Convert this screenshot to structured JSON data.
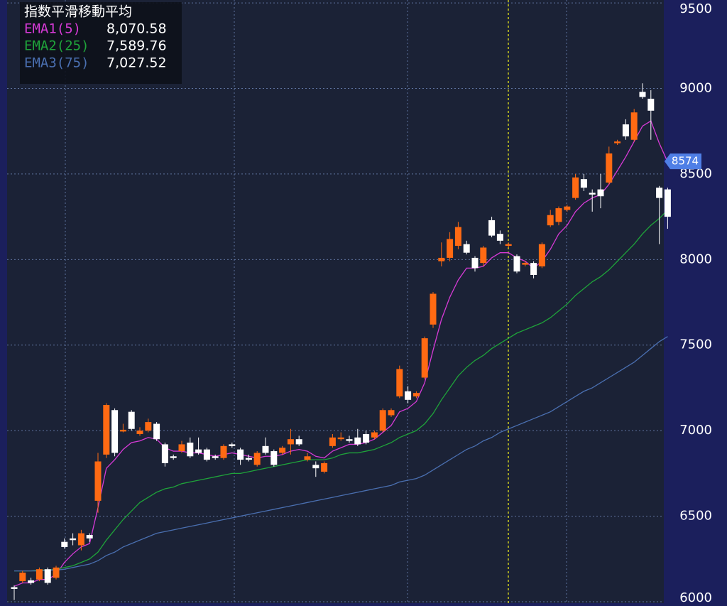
{
  "chart_data": {
    "type": "candlestick",
    "title": "指数平滑移動平均",
    "categories": [
      null,
      null,
      null,
      null,
      null,
      null,
      null,
      null,
      null,
      null,
      null,
      null,
      null,
      null,
      null,
      null,
      null,
      null,
      null,
      null,
      null,
      null,
      null,
      null,
      null,
      null,
      null,
      null,
      null,
      null,
      null,
      null,
      null,
      null,
      null,
      null,
      null,
      null,
      null,
      null,
      null,
      null,
      null,
      null,
      null,
      null,
      null,
      null,
      null,
      null,
      null,
      null,
      null,
      null,
      null,
      null,
      null,
      null,
      null,
      null,
      null,
      null,
      null,
      null,
      null,
      null,
      null,
      null,
      null,
      null,
      null,
      null,
      null,
      null,
      null,
      null,
      null,
      null,
      null
    ],
    "open": [
      6085,
      6120,
      6125,
      6130,
      6190,
      6140,
      6350,
      6370,
      6330,
      6390,
      6590,
      6860,
      7120,
      6995,
      7110,
      6980,
      7000,
      7040,
      6920,
      6850,
      6880,
      6930,
      6890,
      6890,
      6850,
      6840,
      6920,
      6890,
      6840,
      6800,
      6910,
      6880,
      6870,
      6920,
      6950,
      6830,
      6800,
      6760,
      6910,
      6950,
      6950,
      6960,
      6980,
      6960,
      7000,
      7090,
      7200,
      7230,
      7200,
      7310,
      7620,
      7990,
      8010,
      8080,
      8090,
      8010,
      7980,
      8230,
      8150,
      8080,
      8020,
      7970,
      7980,
      7960,
      8200,
      8220,
      8290,
      8360,
      8470,
      8390,
      8410,
      8450,
      8680,
      8790,
      8700,
      8980,
      8940,
      8420,
      8410
    ],
    "high": [
      6095,
      6180,
      6140,
      6200,
      6200,
      6210,
      6370,
      6400,
      6420,
      6400,
      6870,
      7160,
      7130,
      7040,
      7120,
      7020,
      7070,
      7050,
      6930,
      6860,
      6940,
      6960,
      6960,
      6900,
      6860,
      6920,
      6930,
      6900,
      6860,
      6880,
      6960,
      6890,
      6910,
      7010,
      6970,
      6870,
      6820,
      6820,
      6980,
      6990,
      6970,
      7010,
      7000,
      7000,
      7130,
      7130,
      7380,
      7260,
      7230,
      7550,
      7810,
      8100,
      8160,
      8220,
      8110,
      8020,
      8080,
      8250,
      8170,
      8100,
      8030,
      7990,
      7990,
      8100,
      8290,
      8310,
      8320,
      8500,
      8500,
      8410,
      8500,
      8660,
      8700,
      8820,
      8880,
      9030,
      8990,
      8430,
      8420
    ],
    "low": [
      6010,
      6110,
      6100,
      6120,
      6100,
      6130,
      6310,
      6330,
      6300,
      6350,
      6520,
      6840,
      6850,
      6990,
      7000,
      6970,
      6990,
      6940,
      6790,
      6830,
      6870,
      6840,
      6860,
      6820,
      6830,
      6830,
      6900,
      6800,
      6820,
      6790,
      6860,
      6790,
      6860,
      6860,
      6910,
      6820,
      6730,
      6750,
      6900,
      6940,
      6930,
      6910,
      6920,
      6950,
      6990,
      7080,
      7190,
      7160,
      7190,
      7300,
      7600,
      7960,
      7990,
      8060,
      8030,
      7930,
      7960,
      8130,
      8090,
      8070,
      7920,
      7960,
      7890,
      7950,
      8190,
      8200,
      8280,
      8350,
      8400,
      8280,
      8300,
      8440,
      8670,
      8700,
      8690,
      8940,
      8700,
      8090,
      8180
    ],
    "close": [
      6075,
      6170,
      6110,
      6190,
      6110,
      6200,
      6320,
      6360,
      6400,
      6370,
      6820,
      7150,
      6870,
      7005,
      7010,
      7000,
      7050,
      6950,
      6810,
      6840,
      6920,
      6850,
      6870,
      6830,
      6840,
      6910,
      6910,
      6830,
      6830,
      6870,
      6870,
      6800,
      6900,
      6950,
      6920,
      6850,
      6780,
      6810,
      6960,
      6960,
      6940,
      6920,
      6930,
      6990,
      7120,
      7120,
      7360,
      7180,
      7220,
      7540,
      7800,
      8010,
      8120,
      8190,
      8040,
      7950,
      8070,
      8140,
      8110,
      8090,
      7930,
      7980,
      7910,
      8090,
      8260,
      8300,
      8310,
      8480,
      8420,
      8380,
      8370,
      8620,
      8690,
      8720,
      8860,
      8950,
      8870,
      8360,
      8250
    ],
    "up_color": "#ff6a13",
    "down_color": "#ffffff",
    "series": [
      {
        "name": "EMA1(5)",
        "color": "#d63ad6",
        "legend_value": {
          "value": 8070.58,
          "label": "8,070.58"
        },
        "values": [
          6090,
          6110,
          6110,
          6130,
          6130,
          6160,
          6230,
          6280,
          6320,
          6340,
          6550,
          6780,
          6830,
          6890,
          6930,
          6940,
          6960,
          6950,
          6900,
          6880,
          6880,
          6870,
          6870,
          6860,
          6850,
          6860,
          6870,
          6860,
          6850,
          6840,
          6850,
          6850,
          6860,
          6880,
          6890,
          6880,
          6850,
          6840,
          6880,
          6900,
          6920,
          6920,
          6930,
          6950,
          6990,
          7030,
          7110,
          7130,
          7170,
          7280,
          7470,
          7650,
          7780,
          7880,
          7950,
          7950,
          7960,
          8010,
          8040,
          8040,
          8010,
          7990,
          7950,
          7990,
          8060,
          8150,
          8200,
          8280,
          8330,
          8360,
          8380,
          8440,
          8520,
          8600,
          8690,
          8780,
          8810,
          8680,
          8570
        ]
      },
      {
        "name": "EMA2(25)",
        "color": "#1fa33a",
        "legend_value": {
          "value": 7589.76,
          "label": "7,589.76"
        },
        "values": [
          6180,
          6180,
          6180,
          6185,
          6185,
          6190,
          6200,
          6210,
          6230,
          6250,
          6290,
          6360,
          6420,
          6480,
          6530,
          6580,
          6610,
          6640,
          6660,
          6670,
          6690,
          6700,
          6710,
          6720,
          6730,
          6740,
          6750,
          6750,
          6760,
          6770,
          6780,
          6790,
          6800,
          6810,
          6820,
          6830,
          6830,
          6830,
          6840,
          6860,
          6870,
          6870,
          6880,
          6890,
          6910,
          6930,
          6960,
          6980,
          7000,
          7040,
          7100,
          7180,
          7250,
          7320,
          7370,
          7410,
          7440,
          7480,
          7510,
          7540,
          7570,
          7590,
          7610,
          7630,
          7660,
          7700,
          7740,
          7790,
          7830,
          7870,
          7900,
          7940,
          7990,
          8040,
          8090,
          8150,
          8200,
          8240,
          8290
        ]
      },
      {
        "name": "EMA3(75)",
        "color": "#4a6fb0",
        "legend_value": {
          "value": 7027.52,
          "label": "7,027.52"
        },
        "values": [
          6180,
          6180,
          6180,
          6180,
          6185,
          6185,
          6190,
          6200,
          6210,
          6220,
          6240,
          6270,
          6290,
          6320,
          6340,
          6360,
          6380,
          6400,
          6410,
          6420,
          6430,
          6440,
          6450,
          6460,
          6470,
          6480,
          6490,
          6500,
          6510,
          6520,
          6530,
          6540,
          6550,
          6560,
          6570,
          6580,
          6590,
          6600,
          6610,
          6620,
          6630,
          6640,
          6650,
          6660,
          6670,
          6680,
          6700,
          6710,
          6720,
          6740,
          6770,
          6800,
          6830,
          6860,
          6890,
          6910,
          6940,
          6960,
          6990,
          7010,
          7030,
          7050,
          7070,
          7090,
          7110,
          7140,
          7170,
          7200,
          7230,
          7250,
          7280,
          7310,
          7340,
          7370,
          7400,
          7440,
          7480,
          7520,
          7550
        ]
      }
    ],
    "price_tag": 8574,
    "ylim": [
      5975,
      9517
    ],
    "yticks": [
      6000,
      6500,
      7000,
      7500,
      8000,
      8500,
      9000,
      9500
    ],
    "grid": true
  }
}
